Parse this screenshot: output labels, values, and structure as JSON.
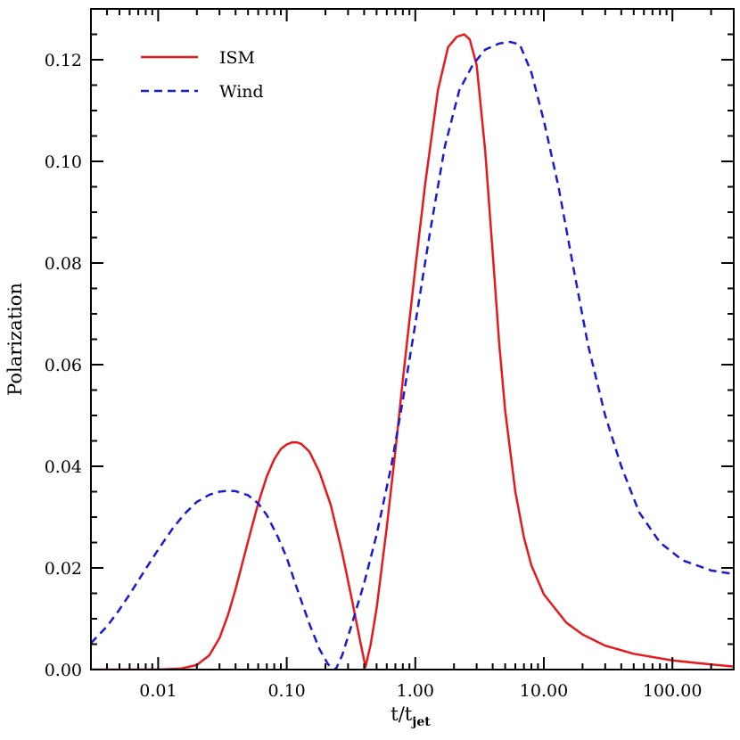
{
  "chart_data": {
    "type": "line",
    "xlabel": "t/t",
    "xlabel_sub": "jet",
    "ylabel": "Polarization",
    "xscale": "log",
    "xlim": [
      0.003,
      300
    ],
    "ylim": [
      0.0,
      0.13
    ],
    "grid": false,
    "legend_position": "top-left",
    "xticks": [
      {
        "value": 0.01,
        "label": "0.01"
      },
      {
        "value": 0.1,
        "label": "0.10"
      },
      {
        "value": 1,
        "label": "1.00"
      },
      {
        "value": 10,
        "label": "10.00"
      },
      {
        "value": 100,
        "label": "100.00"
      }
    ],
    "yticks": [
      {
        "value": 0.0,
        "label": "0.00"
      },
      {
        "value": 0.02,
        "label": "0.02"
      },
      {
        "value": 0.04,
        "label": "0.04"
      },
      {
        "value": 0.06,
        "label": "0.06"
      },
      {
        "value": 0.08,
        "label": "0.08"
      },
      {
        "value": 0.1,
        "label": "0.10"
      },
      {
        "value": 0.12,
        "label": "0.12"
      }
    ],
    "series": [
      {
        "name": "ISM",
        "color": "#e8191c",
        "dash": "solid",
        "points": [
          [
            0.003,
            0.0
          ],
          [
            0.01,
            0.0
          ],
          [
            0.015,
            0.0002
          ],
          [
            0.02,
            0.0009
          ],
          [
            0.025,
            0.0028
          ],
          [
            0.03,
            0.0062
          ],
          [
            0.035,
            0.0108
          ],
          [
            0.04,
            0.0158
          ],
          [
            0.05,
            0.0252
          ],
          [
            0.06,
            0.0327
          ],
          [
            0.07,
            0.038
          ],
          [
            0.08,
            0.0414
          ],
          [
            0.09,
            0.0434
          ],
          [
            0.1,
            0.0443
          ],
          [
            0.11,
            0.0447
          ],
          [
            0.12,
            0.0447
          ],
          [
            0.13,
            0.0444
          ],
          [
            0.15,
            0.0429
          ],
          [
            0.18,
            0.0388
          ],
          [
            0.22,
            0.0324
          ],
          [
            0.27,
            0.023
          ],
          [
            0.32,
            0.014
          ],
          [
            0.37,
            0.006
          ],
          [
            0.41,
            0.0005
          ],
          [
            0.45,
            0.005
          ],
          [
            0.5,
            0.012
          ],
          [
            0.6,
            0.028
          ],
          [
            0.7,
            0.043
          ],
          [
            0.8,
            0.057
          ],
          [
            1.0,
            0.079
          ],
          [
            1.2,
            0.096
          ],
          [
            1.5,
            0.114
          ],
          [
            1.8,
            0.1225
          ],
          [
            2.1,
            0.1245
          ],
          [
            2.4,
            0.125
          ],
          [
            2.65,
            0.124
          ],
          [
            3.0,
            0.119
          ],
          [
            3.5,
            0.102
          ],
          [
            4.0,
            0.082
          ],
          [
            4.5,
            0.064
          ],
          [
            5.0,
            0.051
          ],
          [
            6.0,
            0.035
          ],
          [
            7.0,
            0.026
          ],
          [
            8.0,
            0.0205
          ],
          [
            10.0,
            0.0148
          ],
          [
            15.0,
            0.0092
          ],
          [
            20.0,
            0.0069
          ],
          [
            30.0,
            0.0047
          ],
          [
            50.0,
            0.0031
          ],
          [
            100.0,
            0.0018
          ],
          [
            200.0,
            0.001
          ],
          [
            300.0,
            0.0006
          ]
        ]
      },
      {
        "name": "Wind",
        "color": "#1a1ad6",
        "dash": "dashed",
        "points": [
          [
            0.003,
            0.0052
          ],
          [
            0.004,
            0.0085
          ],
          [
            0.005,
            0.0118
          ],
          [
            0.006,
            0.0148
          ],
          [
            0.008,
            0.0198
          ],
          [
            0.01,
            0.0236
          ],
          [
            0.013,
            0.0278
          ],
          [
            0.016,
            0.0306
          ],
          [
            0.02,
            0.033
          ],
          [
            0.025,
            0.0344
          ],
          [
            0.03,
            0.035
          ],
          [
            0.035,
            0.0352
          ],
          [
            0.04,
            0.0351
          ],
          [
            0.05,
            0.0343
          ],
          [
            0.06,
            0.0327
          ],
          [
            0.07,
            0.0304
          ],
          [
            0.085,
            0.0262
          ],
          [
            0.1,
            0.022
          ],
          [
            0.12,
            0.016
          ],
          [
            0.15,
            0.009
          ],
          [
            0.18,
            0.004
          ],
          [
            0.21,
            0.001
          ],
          [
            0.24,
            0.0
          ],
          [
            0.27,
            0.0028
          ],
          [
            0.32,
            0.0088
          ],
          [
            0.4,
            0.017
          ],
          [
            0.5,
            0.0265
          ],
          [
            0.65,
            0.04
          ],
          [
            0.8,
            0.053
          ],
          [
            1.0,
            0.068
          ],
          [
            1.3,
            0.086
          ],
          [
            1.7,
            0.103
          ],
          [
            2.2,
            0.114
          ],
          [
            2.8,
            0.119
          ],
          [
            3.5,
            0.122
          ],
          [
            4.5,
            0.1232
          ],
          [
            5.5,
            0.1235
          ],
          [
            6.5,
            0.123
          ],
          [
            8.0,
            0.1175
          ],
          [
            10.0,
            0.108
          ],
          [
            13.0,
            0.095
          ],
          [
            17.0,
            0.079
          ],
          [
            22.0,
            0.064
          ],
          [
            30.0,
            0.05
          ],
          [
            40.0,
            0.04
          ],
          [
            55.0,
            0.031
          ],
          [
            80.0,
            0.025
          ],
          [
            120.0,
            0.0215
          ],
          [
            200.0,
            0.0195
          ],
          [
            300.0,
            0.0188
          ]
        ]
      }
    ]
  }
}
